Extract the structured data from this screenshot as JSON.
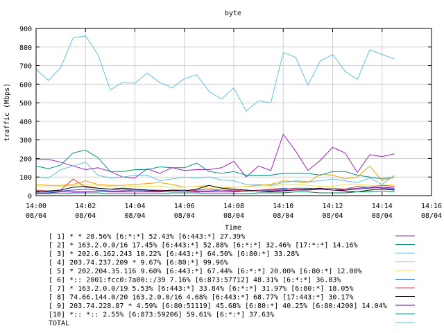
{
  "chart_data": {
    "type": "line",
    "title": "byte",
    "xlabel": "Time",
    "ylabel": "traffic (Mbps)",
    "ylim": [
      0,
      900
    ],
    "yticks": [
      "0",
      "100",
      "200",
      "300",
      "400",
      "500",
      "600",
      "700",
      "800",
      "900"
    ],
    "xlim": [
      "14:00",
      "14:16"
    ],
    "xticks": [
      {
        "time": "14:00",
        "date": "08/04"
      },
      {
        "time": "14:02",
        "date": "08/04"
      },
      {
        "time": "14:04",
        "date": "08/04"
      },
      {
        "time": "14:06",
        "date": "08/04"
      },
      {
        "time": "14:08",
        "date": "08/04"
      },
      {
        "time": "14:10",
        "date": "08/04"
      },
      {
        "time": "14:12",
        "date": "08/04"
      },
      {
        "time": "14:14",
        "date": "08/04"
      },
      {
        "time": "14:16",
        "date": "08/04"
      }
    ],
    "grid": true,
    "legend_position": "bottom",
    "x": [
      "14:00:00",
      "14:00:30",
      "14:01:00",
      "14:01:30",
      "14:02:00",
      "14:02:30",
      "14:03:00",
      "14:03:30",
      "14:04:00",
      "14:04:30",
      "14:05:00",
      "14:05:30",
      "14:06:00",
      "14:06:30",
      "14:07:00",
      "14:07:30",
      "14:08:00",
      "14:08:30",
      "14:09:00",
      "14:09:30",
      "14:10:00",
      "14:10:30",
      "14:11:00",
      "14:11:30",
      "14:12:00",
      "14:12:30",
      "14:13:00",
      "14:13:30",
      "14:14:00",
      "14:14:30"
    ],
    "series": [
      {
        "name": "[ 1] * * 28.56%  [6:*:*] 52.43% [6:443:*] 27.39%",
        "color": "#a020c0",
        "values": [
          195,
          195,
          180,
          160,
          140,
          150,
          130,
          100,
          95,
          145,
          120,
          150,
          135,
          140,
          140,
          150,
          185,
          100,
          160,
          135,
          330,
          240,
          135,
          190,
          260,
          230,
          125,
          220,
          210,
          225
        ]
      },
      {
        "name": "[ 2] * 163.2.0.0/16 17.45%  [6:443:*] 52.88% [6:*:*] 32.46% [17:*:*] 14.16%",
        "color": "#009080",
        "values": [
          160,
          145,
          165,
          230,
          245,
          205,
          130,
          130,
          140,
          140,
          155,
          150,
          150,
          175,
          130,
          120,
          130,
          110,
          110,
          110,
          120,
          120,
          120,
          110,
          130,
          130,
          110,
          100,
          90,
          100
        ]
      },
      {
        "name": "[ 3] * 202.6.162.243 10.22%  [6:443:*] 64.50% [6:80:*] 33.28%",
        "color": "#60c0e0",
        "values": [
          100,
          95,
          140,
          160,
          180,
          110,
          95,
          100,
          110,
          110,
          80,
          90,
          100,
          95,
          100,
          85,
          80,
          60,
          60,
          55,
          70,
          80,
          75,
          80,
          90,
          80,
          70,
          95,
          60,
          110
        ]
      },
      {
        "name": "[ 4] 203.74.237.209 * 9.67%  [6:80:*] 99.96%",
        "color": "#f0a000",
        "values": [
          60,
          55,
          55,
          60,
          80,
          60,
          55,
          55,
          60,
          65,
          70,
          60,
          45,
          50,
          55,
          40,
          45,
          50,
          55,
          60,
          80,
          75,
          70,
          115,
          110,
          90,
          100,
          160,
          80,
          100
        ]
      },
      {
        "name": "[ 5] * 202.204.35.116 9.60%  [6:443:*] 67.44% [6:*:*] 20.00% [6:80:*] 12.00%",
        "color": "#f0e050",
        "values": [
          50,
          45,
          50,
          55,
          60,
          55,
          50,
          45,
          50,
          50,
          50,
          45,
          45,
          50,
          40,
          45,
          45,
          50,
          45,
          50,
          60,
          60,
          55,
          50,
          50,
          60,
          60,
          55,
          55,
          60
        ]
      },
      {
        "name": "[ 6] *:: 2001:fcc0:7a00::/39 7.16%  [6:873:57712] 48.31% [6:*:*] 36.83%",
        "color": "#2060c0",
        "values": [
          25,
          20,
          25,
          30,
          35,
          30,
          25,
          25,
          30,
          25,
          25,
          30,
          30,
          25,
          25,
          30,
          25,
          25,
          30,
          30,
          35,
          40,
          40,
          35,
          30,
          35,
          40,
          45,
          40,
          35
        ]
      },
      {
        "name": "[ 7] * 163.2.0.0/19 5.53%  [6:443:*] 33.84% [6:*:*] 31.97% [6:80:*] 18.05%",
        "color": "#e04040",
        "values": [
          30,
          25,
          30,
          90,
          45,
          40,
          35,
          30,
          35,
          30,
          30,
          25,
          25,
          30,
          35,
          30,
          30,
          25,
          30,
          35,
          40,
          35,
          30,
          35,
          40,
          35,
          50,
          45,
          55,
          50
        ]
      },
      {
        "name": "[ 8] 74.66.144.0/20 163.2.0.0/16 4.68%  [6:443:*] 68.77% [17:443:*] 30.17%",
        "color": "#000000",
        "values": [
          20,
          25,
          30,
          45,
          50,
          40,
          35,
          40,
          35,
          30,
          25,
          30,
          25,
          35,
          55,
          40,
          35,
          30,
          25,
          20,
          25,
          30,
          35,
          40,
          30,
          25,
          20,
          30,
          35,
          30
        ]
      },
      {
        "name": "[ 9] 203.74.228.87 * 4.59%  [6:80:51119] 45.68% [6:80:*] 40.25% [6:80:4200] 14.04%",
        "color": "#8000a0",
        "values": [
          15,
          15,
          20,
          20,
          20,
          25,
          20,
          20,
          20,
          20,
          20,
          25,
          25,
          20,
          20,
          20,
          20,
          25,
          25,
          25,
          30,
          30,
          30,
          35,
          30,
          30,
          35,
          40,
          45,
          40
        ]
      },
      {
        "name": "[10] *:: *:: 2.55%  [6:873:59206] 59.61% [6:*:*] 37.63%",
        "color": "#008060",
        "values": [
          10,
          10,
          10,
          15,
          15,
          15,
          10,
          10,
          10,
          10,
          10,
          15,
          15,
          15,
          10,
          10,
          10,
          10,
          15,
          15,
          15,
          20,
          20,
          15,
          15,
          15,
          20,
          20,
          25,
          20
        ]
      },
      {
        "name": "TOTAL",
        "color": "#60c0e0",
        "values": [
          680,
          620,
          690,
          850,
          860,
          760,
          570,
          610,
          605,
          660,
          610,
          580,
          630,
          650,
          560,
          520,
          580,
          455,
          510,
          500,
          770,
          745,
          595,
          725,
          760,
          670,
          625,
          785,
          760,
          735
        ]
      }
    ]
  }
}
